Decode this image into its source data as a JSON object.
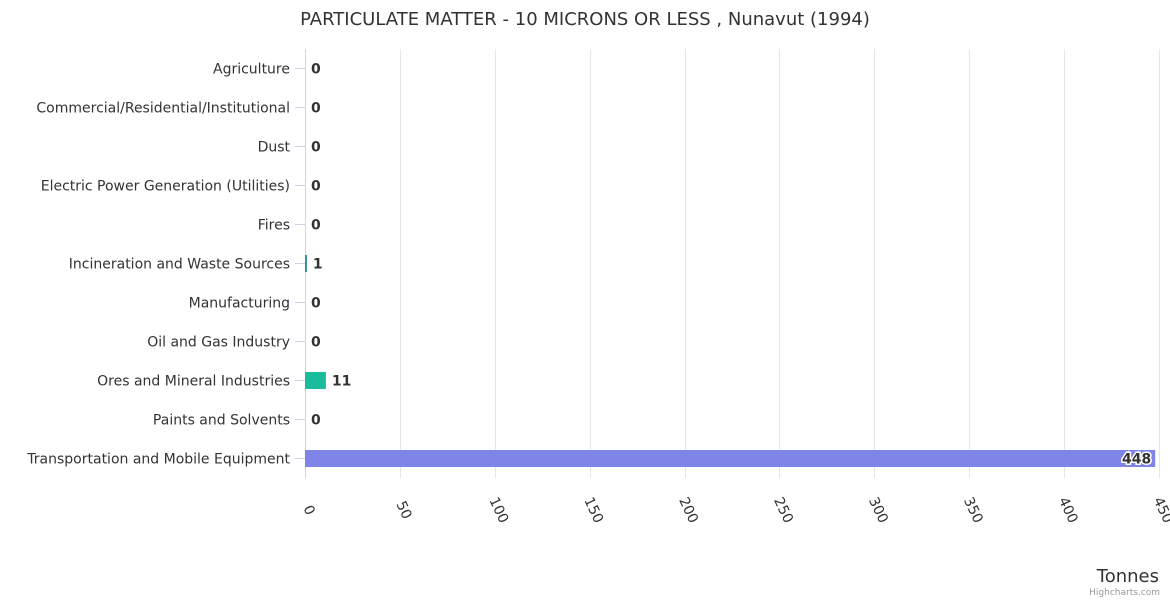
{
  "chart_data": {
    "type": "bar",
    "orientation": "horizontal",
    "title": "PARTICULATE MATTER - 10 MICRONS OR LESS , Nunavut (1994)",
    "xlabel": "Tonnes",
    "ylabel": "",
    "categories": [
      "Agriculture",
      "Commercial/Residential/Institutional",
      "Dust",
      "Electric Power Generation (Utilities)",
      "Fires",
      "Incineration and Waste Sources",
      "Manufacturing",
      "Oil and Gas Industry",
      "Ores and Mineral Industries",
      "Paints and Solvents",
      "Transportation and Mobile Equipment"
    ],
    "values": [
      0,
      0,
      0,
      0,
      0,
      1,
      0,
      0,
      11,
      0,
      448
    ],
    "value_labels": [
      "0",
      "0",
      "0",
      "0",
      "0",
      "1",
      "0",
      "0",
      "11",
      "0",
      "448"
    ],
    "colors": [
      "#7cb5ec",
      "#434348",
      "#90ed7d",
      "#f7a35c",
      "#8085e9",
      "#2b908f",
      "#f15c80",
      "#e4d354",
      "#1abc9c",
      "#91e8e1",
      "#7f84e8"
    ],
    "xlim": [
      0,
      450
    ],
    "ticks": [
      "0",
      "50",
      "100",
      "150",
      "200",
      "250",
      "300",
      "350",
      "400",
      "450"
    ],
    "tick_values": [
      0,
      50,
      100,
      150,
      200,
      250,
      300,
      350,
      400,
      450
    ],
    "grid": true,
    "legend": "none"
  },
  "credits": "Highcharts.com"
}
